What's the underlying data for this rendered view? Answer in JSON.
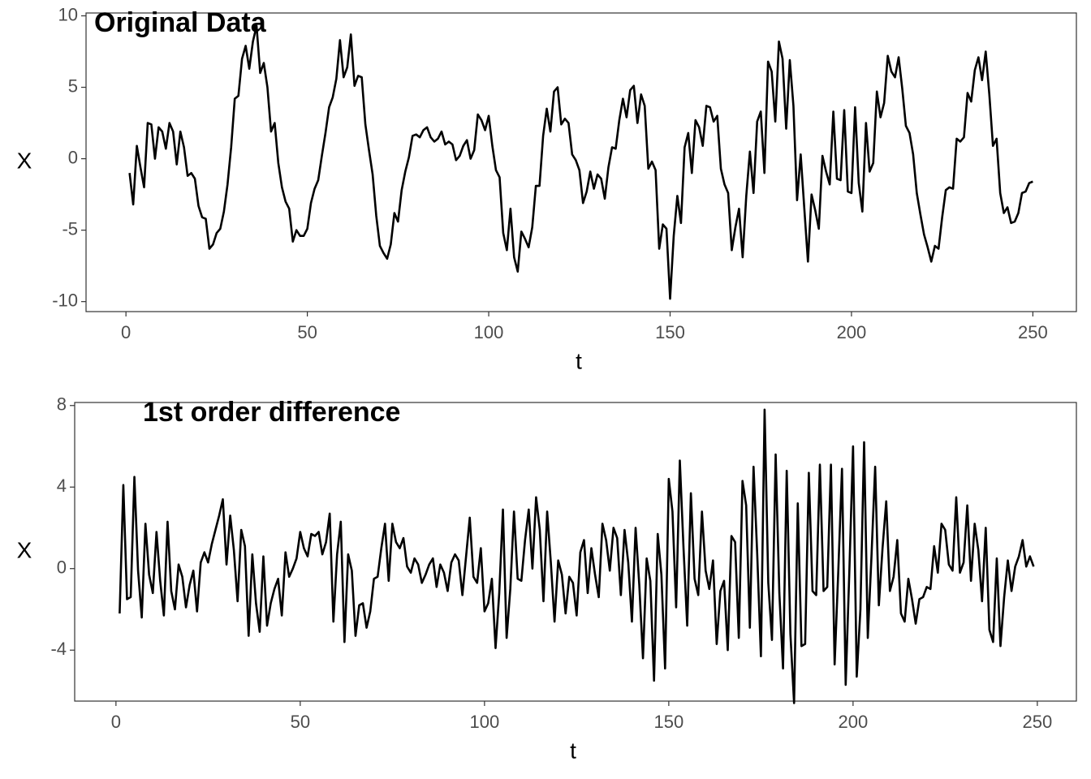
{
  "chart_data": [
    {
      "type": "line",
      "title": "Original Data",
      "xlabel": "t",
      "ylabel": "X",
      "color": "#000000",
      "xlim": [
        -11,
        262
      ],
      "ylim": [
        -10.7,
        10.2
      ],
      "xticks": [
        0,
        50,
        100,
        150,
        200,
        250
      ],
      "yticks": [
        -10,
        -5,
        0,
        5,
        10
      ],
      "x": [
        1,
        2,
        3,
        4,
        5,
        6,
        7,
        8,
        9,
        10,
        11,
        12,
        13,
        14,
        15,
        16,
        17,
        18,
        19,
        20,
        21,
        22,
        23,
        24,
        25,
        26,
        27,
        28,
        29,
        30,
        31,
        32,
        33,
        34,
        35,
        36,
        37,
        38,
        39,
        40,
        41,
        42,
        43,
        44,
        45,
        46,
        47,
        48,
        49,
        50,
        51,
        52,
        53,
        54,
        55,
        56,
        57,
        58,
        59,
        60,
        61,
        62,
        63,
        64,
        65,
        66,
        67,
        68,
        69,
        70,
        71,
        72,
        73,
        74,
        75,
        76,
        77,
        78,
        79,
        80,
        81,
        82,
        83,
        84,
        85,
        86,
        87,
        88,
        89,
        90,
        91,
        92,
        93,
        94,
        95,
        96,
        97,
        98,
        99,
        100,
        101,
        102,
        103,
        104,
        105,
        106,
        107,
        108,
        109,
        110,
        111,
        112,
        113,
        114,
        115,
        116,
        117,
        118,
        119,
        120,
        121,
        122,
        123,
        124,
        125,
        126,
        127,
        128,
        129,
        130,
        131,
        132,
        133,
        134,
        135,
        136,
        137,
        138,
        139,
        140,
        141,
        142,
        143,
        144,
        145,
        146,
        147,
        148,
        149,
        150,
        151,
        152,
        153,
        154,
        155,
        156,
        157,
        158,
        159,
        160,
        161,
        162,
        163,
        164,
        165,
        166,
        167,
        168,
        169,
        170,
        171,
        172,
        173,
        174,
        175,
        176,
        177,
        178,
        179,
        180,
        181,
        182,
        183,
        184,
        185,
        186,
        187,
        188,
        189,
        190,
        191,
        192,
        193,
        194,
        195,
        196,
        197,
        198,
        199,
        200,
        201,
        202,
        203,
        204,
        205,
        206,
        207,
        208,
        209,
        210,
        211,
        212,
        213,
        214,
        215,
        216,
        217,
        218,
        219,
        220,
        221,
        222,
        223,
        224,
        225,
        226,
        227,
        228,
        229,
        230,
        231,
        232,
        233,
        234,
        235,
        236,
        237,
        238,
        239,
        240,
        241,
        242,
        243,
        244,
        245,
        246,
        247,
        248,
        249,
        250
      ],
      "values": [
        -1,
        -3.2,
        0.9,
        -0.6,
        -2,
        2.5,
        2.4,
        0,
        2.2,
        1.9,
        0.7,
        2.5,
        1.9,
        -0.4,
        1.9,
        0.8,
        -1.2,
        -1,
        -1.4,
        -3.3,
        -4.1,
        -4.2,
        -6.3,
        -6,
        -5.2,
        -4.9,
        -3.7,
        -1.8,
        0.8,
        4.2,
        4.4,
        7,
        7.9,
        6.3,
        8.2,
        9.3,
        6,
        6.7,
        5,
        1.9,
        2.5,
        -0.3,
        -2,
        -3,
        -3.5,
        -5.8,
        -5,
        -5.4,
        -5.4,
        -4.9,
        -3.1,
        -2.1,
        -1.5,
        0.2,
        1.8,
        3.6,
        4.3,
        5.6,
        8.3,
        5.7,
        6.4,
        8.7,
        5.1,
        5.8,
        5.7,
        2.4,
        0.6,
        -1.1,
        -4,
        -6.1,
        -6.6,
        -7,
        -6,
        -3.8,
        -4.4,
        -2.2,
        -0.9,
        0.1,
        1.6,
        1.7,
        1.5,
        2,
        2.2,
        1.5,
        1.2,
        1.4,
        1.9,
        1,
        1.2,
        1,
        -0.1,
        0.2,
        0.9,
        1.3,
        0,
        0.6,
        3.1,
        2.7,
        2,
        3,
        0.9,
        -0.8,
        -1.3,
        -5.2,
        -6.4,
        -3.5,
        -6.9,
        -7.9,
        -5.1,
        -5.6,
        -6.2,
        -4.8,
        -1.9,
        -1.9,
        1.6,
        3.5,
        1.9,
        4.7,
        5,
        2.4,
        2.8,
        2.5,
        0.3,
        -0.1,
        -0.8,
        -3.1,
        -2.3,
        -0.9,
        -2.1,
        -1.1,
        -1.4,
        -2.8,
        -0.6,
        0.8,
        0.7,
        2.7,
        4.2,
        2.9,
        4.8,
        5.1,
        2.5,
        4.5,
        3.7,
        -0.7,
        -0.2,
        -0.8,
        -6.3,
        -4.6,
        -4.9,
        -9.8,
        -5.4,
        -2.6,
        -4.5,
        0.8,
        1.8,
        -1,
        2.7,
        2.2,
        0.9,
        3.7,
        3.6,
        2.6,
        3,
        -0.7,
        -1.8,
        -2.4,
        -6.4,
        -4.8,
        -3.5,
        -6.9,
        -2.6,
        0.5,
        -2.4,
        2.6,
        3.3,
        -1,
        6.8,
        6.1,
        2.6,
        8.2,
        7,
        2.1,
        6.9,
        3.7,
        -2.9,
        0.3,
        -3.5,
        -7.2,
        -2.5,
        -3.6,
        -4.9,
        0.2,
        -0.9,
        -1.8,
        3.3,
        -1.4,
        -1.5,
        3.4,
        -2.3,
        -2.4,
        3.6,
        -1.7,
        -3.7,
        2.5,
        -0.9,
        -0.3,
        4.7,
        2.9,
        3.9,
        7.2,
        6.1,
        5.7,
        7.1,
        4.9,
        2.3,
        1.8,
        0.3,
        -2.4,
        -3.9,
        -5.3,
        -6.2,
        -7.2,
        -6.1,
        -6.3,
        -4.1,
        -2.2,
        -2,
        -2.1,
        1.4,
        1.2,
        1.5,
        4.6,
        4,
        6.2,
        7.1,
        5.5,
        7.5,
        4.5,
        0.9,
        1.4,
        -2.4,
        -3.8,
        -3.4,
        -4.5,
        -4.4,
        -3.8,
        -2.4,
        -2.3,
        -1.7,
        -1.6
      ]
    },
    {
      "type": "line",
      "title": "1st order difference",
      "xlabel": "t",
      "ylabel": "X",
      "color": "#000000",
      "xlim": [
        -11.2,
        260.6
      ],
      "ylim": [
        -6.5,
        8.15
      ],
      "xticks": [
        0,
        50,
        100,
        150,
        200,
        250
      ],
      "yticks": [
        -4,
        0,
        4,
        8
      ],
      "x": [
        1,
        2,
        3,
        4,
        5,
        6,
        7,
        8,
        9,
        10,
        11,
        12,
        13,
        14,
        15,
        16,
        17,
        18,
        19,
        20,
        21,
        22,
        23,
        24,
        25,
        26,
        27,
        28,
        29,
        30,
        31,
        32,
        33,
        34,
        35,
        36,
        37,
        38,
        39,
        40,
        41,
        42,
        43,
        44,
        45,
        46,
        47,
        48,
        49,
        50,
        51,
        52,
        53,
        54,
        55,
        56,
        57,
        58,
        59,
        60,
        61,
        62,
        63,
        64,
        65,
        66,
        67,
        68,
        69,
        70,
        71,
        72,
        73,
        74,
        75,
        76,
        77,
        78,
        79,
        80,
        81,
        82,
        83,
        84,
        85,
        86,
        87,
        88,
        89,
        90,
        91,
        92,
        93,
        94,
        95,
        96,
        97,
        98,
        99,
        100,
        101,
        102,
        103,
        104,
        105,
        106,
        107,
        108,
        109,
        110,
        111,
        112,
        113,
        114,
        115,
        116,
        117,
        118,
        119,
        120,
        121,
        122,
        123,
        124,
        125,
        126,
        127,
        128,
        129,
        130,
        131,
        132,
        133,
        134,
        135,
        136,
        137,
        138,
        139,
        140,
        141,
        142,
        143,
        144,
        145,
        146,
        147,
        148,
        149,
        150,
        151,
        152,
        153,
        154,
        155,
        156,
        157,
        158,
        159,
        160,
        161,
        162,
        163,
        164,
        165,
        166,
        167,
        168,
        169,
        170,
        171,
        172,
        173,
        174,
        175,
        176,
        177,
        178,
        179,
        180,
        181,
        182,
        183,
        184,
        185,
        186,
        187,
        188,
        189,
        190,
        191,
        192,
        193,
        194,
        195,
        196,
        197,
        198,
        199,
        200,
        201,
        202,
        203,
        204,
        205,
        206,
        207,
        208,
        209,
        210,
        211,
        212,
        213,
        214,
        215,
        216,
        217,
        218,
        219,
        220,
        221,
        222,
        223,
        224,
        225,
        226,
        227,
        228,
        229,
        230,
        231,
        232,
        233,
        234,
        235,
        236,
        237,
        238,
        239,
        240,
        241,
        242,
        243,
        244,
        245,
        246,
        247,
        248,
        249
      ],
      "values": [
        -2.2,
        4.1,
        -1.5,
        -1.4,
        4.5,
        -0.1,
        -2.4,
        2.2,
        -0.3,
        -1.2,
        1.8,
        -0.6,
        -2.3,
        2.3,
        -1.1,
        -2,
        0.2,
        -0.4,
        -1.9,
        -0.8,
        -0.1,
        -2.1,
        0.3,
        0.8,
        0.3,
        1.2,
        1.9,
        2.6,
        3.4,
        0.2,
        2.6,
        0.9,
        -1.6,
        1.9,
        1.1,
        -3.3,
        0.7,
        -1.7,
        -3.1,
        0.6,
        -2.8,
        -1.7,
        -1,
        -0.5,
        -2.3,
        0.8,
        -0.4,
        0,
        0.5,
        1.8,
        1,
        0.6,
        1.7,
        1.6,
        1.8,
        0.7,
        1.3,
        2.7,
        -2.6,
        0.7,
        2.3,
        -3.6,
        0.7,
        -0.1,
        -3.3,
        -1.8,
        -1.7,
        -2.9,
        -2.1,
        -0.5,
        -0.4,
        1,
        2.2,
        -0.6,
        2.2,
        1.3,
        1,
        1.5,
        0.1,
        -0.2,
        0.5,
        0.2,
        -0.7,
        -0.3,
        0.2,
        0.5,
        -0.9,
        0.2,
        -0.2,
        -1.1,
        0.3,
        0.7,
        0.4,
        -1.3,
        0.6,
        2.5,
        -0.4,
        -0.7,
        1,
        -2.1,
        -1.7,
        -0.5,
        -3.9,
        -1.2,
        2.9,
        -3.4,
        -1,
        2.8,
        -0.5,
        -0.6,
        1.4,
        2.9,
        0,
        3.5,
        1.9,
        -1.6,
        2.8,
        0.3,
        -2.6,
        0.4,
        -0.3,
        -2.2,
        -0.4,
        -0.7,
        -2.3,
        0.8,
        1.4,
        -1.2,
        1,
        -0.3,
        -1.4,
        2.2,
        1.4,
        -0.1,
        2,
        1.5,
        -1.3,
        1.9,
        0.3,
        -2.6,
        2,
        -0.8,
        -4.4,
        0.5,
        -0.6,
        -5.5,
        1.7,
        -0.3,
        -4.9,
        4.4,
        2.8,
        -1.9,
        5.3,
        1,
        -2.8,
        3.7,
        -0.5,
        -1.3,
        2.8,
        -0.1,
        -1,
        0.4,
        -3.7,
        -1.1,
        -0.6,
        -4,
        1.6,
        1.3,
        -3.4,
        4.3,
        3.1,
        -2.9,
        5,
        0.7,
        -4.3,
        7.8,
        -0.7,
        -3.5,
        5.6,
        -1.2,
        -4.9,
        4.8,
        -3.2,
        -6.6,
        3.2,
        -3.8,
        -3.7,
        4.7,
        -1.1,
        -1.3,
        5.1,
        -1.1,
        -0.9,
        5.1,
        -4.7,
        -0.1,
        4.9,
        -5.7,
        -0.1,
        6,
        -5.3,
        -2,
        6.2,
        -3.4,
        0.6,
        5,
        -1.8,
        1,
        3.3,
        -1.1,
        -0.4,
        1.4,
        -2.2,
        -2.6,
        -0.5,
        -1.5,
        -2.7,
        -1.5,
        -1.4,
        -0.9,
        -1,
        1.1,
        -0.2,
        2.2,
        1.9,
        0.2,
        -0.1,
        3.5,
        -0.2,
        0.3,
        3.1,
        -0.6,
        2.2,
        0.9,
        -1.6,
        2,
        -3,
        -3.6,
        0.5,
        -3.8,
        -1.4,
        0.4,
        -1.1,
        0.1,
        0.6,
        1.4,
        0.1,
        0.6,
        0.1
      ]
    }
  ]
}
